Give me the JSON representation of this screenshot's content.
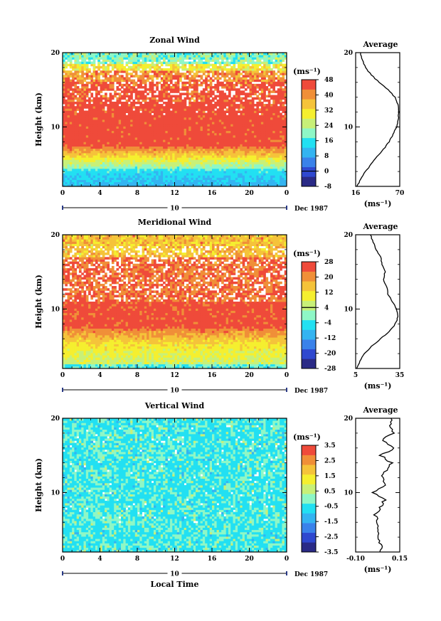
{
  "figure": {
    "xlabel": "Local Time",
    "date_label": "Dec 1987",
    "day_label": "10",
    "colors": {
      "z_neg": [
        "#2a2a86",
        "#2f48cf",
        "#3a82ea",
        "#34b4f1",
        "#22e0f2",
        "#8ef7c6",
        "#c8f078",
        "#f5ef2f",
        "#f5c33a",
        "#f08f38",
        "#ef4a3a"
      ],
      "v_all": [
        "#2a2a86",
        "#2f48cf",
        "#3a82ea",
        "#34b4f1",
        "#22e0f2",
        "#8ef7c6",
        "#c8f078",
        "#f5ef2f",
        "#f5c33a",
        "#f08f38",
        "#ef4a3a"
      ],
      "w_all": [
        "#2a2a86",
        "#2f48cf",
        "#3a82ea",
        "#34b4f1",
        "#22e0f2",
        "#8ef7c6",
        "#c8f078",
        "#f5ef2f",
        "#f5c33a",
        "#f08f38",
        "#ef4a3a"
      ]
    }
  },
  "chart_data": [
    {
      "type": "heatmap",
      "title": "Zonal Wind",
      "ylabel": "Height (km)",
      "xlabel": "",
      "x_ticks": [
        "0",
        "4",
        "8",
        "12",
        "16",
        "20",
        "0"
      ],
      "xlim": [
        0,
        24
      ],
      "ylim": [
        2,
        20
      ],
      "y_ticks": [
        "20",
        "10"
      ],
      "colorbar": {
        "unit": "(ms⁻¹)",
        "levels": [
          -8,
          -4,
          0,
          4,
          8,
          12,
          16,
          20,
          24,
          28,
          32,
          36,
          40,
          44,
          48
        ],
        "tick_labels": [
          "48",
          "40",
          "32",
          "24",
          "16",
          "8",
          "0",
          "-8"
        ],
        "zero_line": 0
      },
      "profile": {
        "title": "Average",
        "x_ticks": [
          "16",
          "70"
        ],
        "xlim": [
          16,
          70
        ],
        "unit": "(ms⁻¹)",
        "heights": [
          2,
          3,
          4,
          5,
          6,
          7,
          8,
          9,
          10,
          11,
          12,
          13,
          14,
          15,
          16,
          17,
          18,
          19,
          20
        ],
        "values": [
          18,
          22,
          28,
          35,
          42,
          50,
          57,
          62,
          66,
          68,
          69,
          68,
          64,
          56,
          45,
          35,
          28,
          24,
          22
        ]
      }
    },
    {
      "type": "heatmap",
      "title": "Meridional Wind",
      "ylabel": "Height (km)",
      "xlabel": "",
      "x_ticks": [
        "0",
        "4",
        "8",
        "12",
        "16",
        "20",
        "0"
      ],
      "xlim": [
        0,
        24
      ],
      "ylim": [
        2,
        20
      ],
      "y_ticks": [
        "20",
        "10"
      ],
      "colorbar": {
        "unit": "(ms⁻¹)",
        "levels": [
          -28,
          -24,
          -20,
          -16,
          -12,
          -8,
          -4,
          0,
          4,
          8,
          12,
          16,
          20,
          24,
          28
        ],
        "tick_labels": [
          "28",
          "20",
          "12",
          "4",
          "-4",
          "-12",
          "-20",
          "-28"
        ],
        "zero_line": 4
      },
      "profile": {
        "title": "Average",
        "x_ticks": [
          "5",
          "35"
        ],
        "xlim": [
          5,
          35
        ],
        "unit": "(ms⁻¹)",
        "heights": [
          2,
          3,
          4,
          5,
          6,
          7,
          8,
          9,
          10,
          11,
          12,
          13,
          14,
          15,
          16,
          17,
          18,
          19,
          20
        ],
        "values": [
          6,
          8,
          11,
          16,
          22,
          28,
          32,
          34,
          33,
          30,
          27,
          26,
          24,
          25,
          23,
          22,
          19,
          17,
          15
        ]
      }
    },
    {
      "type": "heatmap",
      "title": "Vertical Wind",
      "ylabel": "Height (km)",
      "xlabel": "Local Time",
      "x_ticks": [
        "0",
        "4",
        "8",
        "12",
        "16",
        "20",
        "0"
      ],
      "xlim": [
        0,
        24
      ],
      "ylim": [
        2,
        20
      ],
      "y_ticks": [
        "20",
        "10"
      ],
      "colorbar": {
        "unit": "(ms⁻¹)",
        "levels": [
          -3.5,
          -3,
          -2.5,
          -2,
          -1.5,
          -1,
          -0.5,
          0,
          0.5,
          1,
          1.5,
          2,
          2.5,
          3,
          3.5
        ],
        "tick_labels": [
          "3.5",
          "2.5",
          "1.5",
          "0.5",
          "-0.5",
          "-1.5",
          "-2.5",
          "-3.5"
        ],
        "zero_line": null
      },
      "profile": {
        "title": "Average",
        "x_ticks": [
          "-0.10",
          "0.15"
        ],
        "xlim": [
          -0.1,
          0.15
        ],
        "unit": "(ms⁻¹)",
        "heights": [
          2,
          3,
          4,
          5,
          6,
          7,
          8,
          9,
          10,
          11,
          12,
          13,
          14,
          15,
          16,
          17,
          18,
          19,
          20
        ],
        "values": [
          0.05,
          0.04,
          0.03,
          0.02,
          0.03,
          0.01,
          0.04,
          0.06,
          0.0,
          0.06,
          0.05,
          0.07,
          0.1,
          0.04,
          0.12,
          0.05,
          0.11,
          0.09,
          0.1
        ]
      }
    }
  ]
}
